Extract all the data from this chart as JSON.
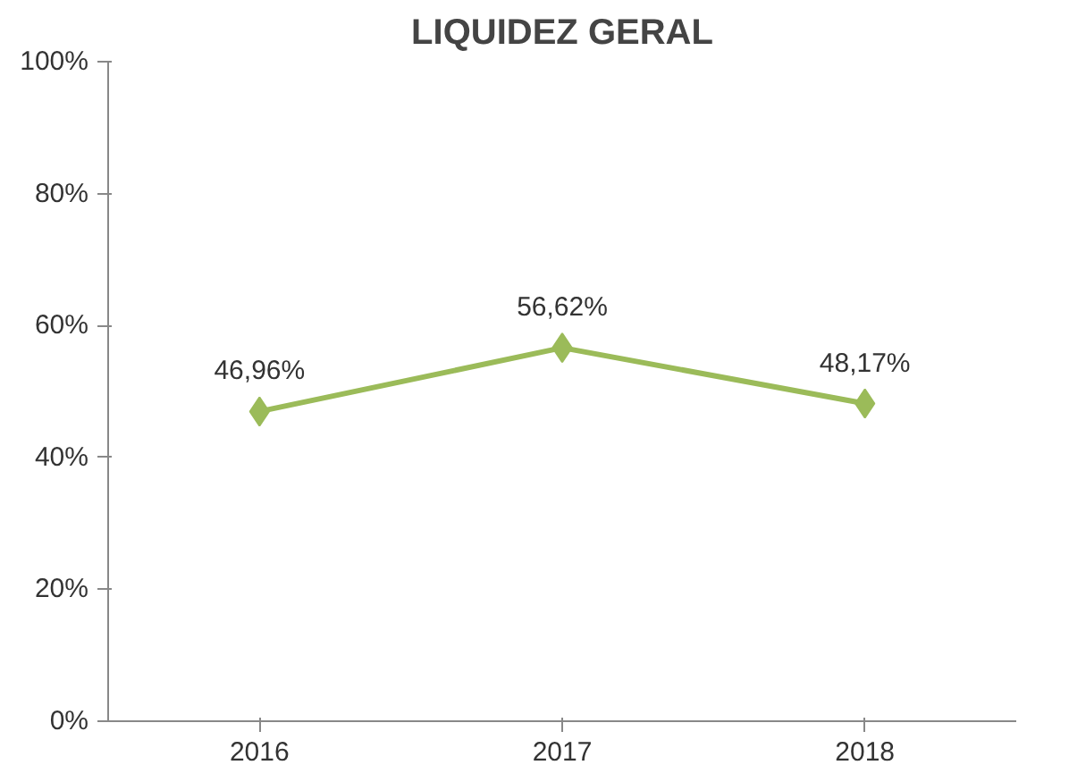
{
  "chart_data": {
    "type": "line",
    "title": "LIQUIDEZ GERAL",
    "categories": [
      "2016",
      "2017",
      "2018"
    ],
    "series": [
      {
        "color": "#9bbb59",
        "values": [
          46.96,
          56.62,
          48.17
        ],
        "value_labels": [
          "46,96%",
          "56,62%",
          "48,17%"
        ]
      }
    ],
    "ylim": [
      0,
      100
    ],
    "yticks": [
      {
        "value": 0,
        "label": "0%"
      },
      {
        "value": 20,
        "label": "20%"
      },
      {
        "value": 40,
        "label": "40%"
      },
      {
        "value": 60,
        "label": "60%"
      },
      {
        "value": 80,
        "label": "80%"
      },
      {
        "value": 100,
        "label": "100%"
      }
    ],
    "grid": false,
    "marker": "diamond",
    "line_style": "solid"
  }
}
